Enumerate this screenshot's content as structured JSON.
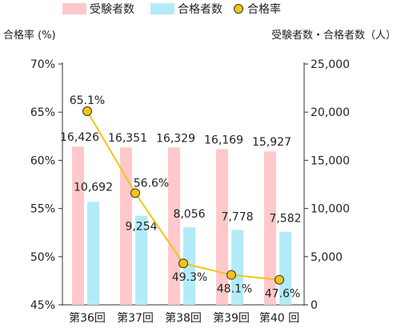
{
  "chart_data": {
    "type": "bar",
    "categories": [
      "第36回",
      "第37回",
      "第38回",
      "第39回",
      "第40 回"
    ],
    "series": [
      {
        "name": "受験者数",
        "kind": "bar",
        "axis": "right",
        "values": [
          16426,
          16351,
          16329,
          16169,
          15927
        ],
        "labels": [
          "16,426",
          "16,351",
          "16,329",
          "16,169",
          "15,927"
        ]
      },
      {
        "name": "合格者数",
        "kind": "bar",
        "axis": "right",
        "values": [
          10692,
          9254,
          8056,
          7778,
          7582
        ],
        "labels": [
          "10,692",
          "9,254",
          "8,056",
          "7,778",
          "7,582"
        ]
      },
      {
        "name": "合格率",
        "kind": "line",
        "axis": "left",
        "values": [
          65.1,
          56.6,
          49.3,
          48.1,
          47.6
        ],
        "labels": [
          "65.1%",
          "56.6%",
          "49.3%",
          "48.1%",
          "47.6%"
        ]
      }
    ],
    "ylabel_left": "合格率 (%)",
    "ylabel_right": "受験者数・合格者数（人）",
    "ylim_left": [
      45,
      70
    ],
    "ylim_right": [
      0,
      25000
    ],
    "yticks_left": [
      "45%",
      "50%",
      "55%",
      "60%",
      "65%",
      "70%"
    ],
    "yticks_right": [
      "0",
      "5,000",
      "10,000",
      "15,000",
      "20,000",
      "25,000"
    ],
    "grid": false,
    "legend_position": "top",
    "colors": {
      "applicants": "#ffc9cb",
      "passers": "#b3ecf8",
      "rate_line": "#f2c416",
      "rate_marker": "#f6c414",
      "rate_marker_edge": "#333333",
      "axis": "#333333"
    }
  }
}
